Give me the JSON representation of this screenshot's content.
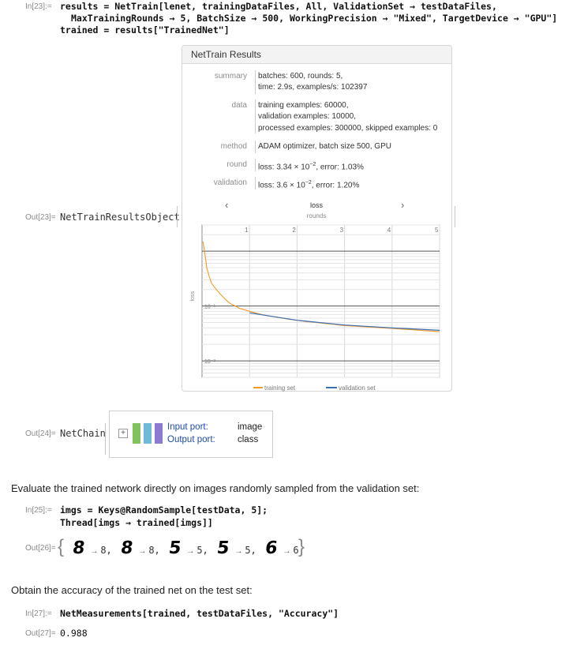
{
  "in23": {
    "label": "In[23]:=",
    "line1": "results = NetTrain[lenet, trainingDataFiles, All, ValidationSet → testDataFiles,",
    "line2": "MaxTrainingRounds → 5, BatchSize → 500, WorkingPrecision → \"Mixed\", TargetDevice → \"GPU\"]",
    "line3": "trained = results[\"TrainedNet\"]"
  },
  "out23": {
    "label": "Out[23]=",
    "head": "NetTrainResultsObject"
  },
  "panel": {
    "title": "NetTrain Results",
    "rows": [
      {
        "key": "summary",
        "lines": [
          "batches: 600, rounds: 5,",
          "time: 2.9s, examples/s: 102397"
        ]
      },
      {
        "key": "data",
        "lines": [
          "training examples: 60000,",
          "validation examples: 10000,",
          "processed examples: 300000, skipped examples: 0"
        ]
      },
      {
        "key": "method",
        "lines": [
          "ADAM optimizer, batch size 500, GPU"
        ]
      },
      {
        "key": "round",
        "lines": [
          "loss: 3.34 × 10",
          "−2",
          ", error: 1.03%"
        ]
      },
      {
        "key": "validation",
        "lines": [
          "loss: 3.6 × 10",
          "−2",
          ", error: 1.20%"
        ]
      }
    ],
    "nav_prev": "‹",
    "nav_next": "›",
    "plot_title": "loss"
  },
  "chart_data": {
    "type": "line",
    "title": "loss",
    "xlabel": "rounds",
    "ylabel": "loss",
    "x_ticks": [
      "1",
      "2",
      "3",
      "4",
      "5"
    ],
    "y_ticks": [
      "10⁻¹",
      "10⁻²"
    ],
    "y_scale": "log",
    "xlim": [
      0,
      5
    ],
    "ylim": [
      0.005,
      3
    ],
    "grid": true,
    "legend_position": "bottom",
    "series": [
      {
        "name": "training set",
        "color": "#f39a24",
        "x": [
          0.02,
          0.06,
          0.1,
          0.15,
          0.2,
          0.3,
          0.4,
          0.5,
          0.6,
          0.7,
          0.8,
          0.9,
          1.0,
          1.2,
          1.4,
          1.6,
          1.8,
          2.0,
          2.2,
          2.4,
          2.6,
          2.8,
          3.0,
          3.2,
          3.4,
          3.6,
          3.8,
          4.0,
          4.2,
          4.4,
          4.6,
          4.8,
          5.0
        ],
        "y": [
          1.5,
          0.9,
          0.5,
          0.35,
          0.26,
          0.2,
          0.16,
          0.13,
          0.11,
          0.1,
          0.09,
          0.085,
          0.08,
          0.072,
          0.066,
          0.062,
          0.058,
          0.055,
          0.052,
          0.05,
          0.048,
          0.046,
          0.044,
          0.043,
          0.042,
          0.041,
          0.04,
          0.039,
          0.038,
          0.037,
          0.036,
          0.035,
          0.034
        ]
      },
      {
        "name": "validation set",
        "color": "#3d6fb5",
        "x": [
          1,
          2,
          3,
          4,
          5
        ],
        "y": [
          0.075,
          0.055,
          0.045,
          0.04,
          0.036
        ]
      }
    ]
  },
  "out24": {
    "label": "Out[24]=",
    "head": "NetChain",
    "input_port_label": "Input port:",
    "input_port_value": "image",
    "output_port_label": "Output port:",
    "output_port_value": "class"
  },
  "text1": "Evaluate the trained network directly on images randomly sampled from the validation set:",
  "in25": {
    "label": "In[25]:=",
    "line1": "imgs = Keys@RandomSample[testData, 5];",
    "line2": "Thread[imgs → trained[imgs]]"
  },
  "out26": {
    "label": "Out[26]=",
    "digits": [
      "8",
      "8",
      "5",
      "5",
      "6"
    ],
    "predictions": [
      "8",
      "8",
      "5",
      "5",
      "6"
    ]
  },
  "text2": "Obtain the accuracy of the trained net on the test set:",
  "in27": {
    "label": "In[27]:=",
    "line1": "NetMeasurements[trained, testDataFiles, \"Accuracy\"]"
  },
  "out27": {
    "label": "Out[27]=",
    "value": "0.988"
  }
}
